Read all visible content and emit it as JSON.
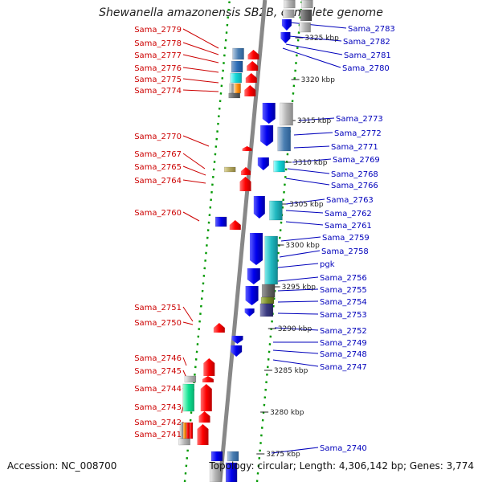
{
  "title": "Shewanella amazonensis SB2B, complete genome",
  "footer": {
    "accession": "Accession: NC_008700",
    "topology": "Topology: circular; Length: 4,306,142 bp; Genes: 3,774"
  },
  "colors": {
    "left_label": "#cc0000",
    "right_label": "#0000bb",
    "forward_gene": "#ff0000",
    "reverse_gene": "#0000ee",
    "tick": "#009900",
    "backbone": "#888888"
  },
  "scale_labels": [
    "3325 kbp",
    "3320 kbp",
    "3315 kbp",
    "3310 kbp",
    "3305 kbp",
    "3300 kbp",
    "3295 kbp",
    "3290 kbp",
    "3285 kbp",
    "3280 kbp",
    "3275 kbp"
  ],
  "left_genes": [
    "Sama_2779",
    "Sama_2778",
    "Sama_2777",
    "Sama_2776",
    "Sama_2775",
    "Sama_2774",
    "Sama_2770",
    "Sama_2767",
    "Sama_2765",
    "Sama_2764",
    "Sama_2760",
    "Sama_2751",
    "Sama_2750",
    "Sama_2746",
    "Sama_2745",
    "Sama_2744",
    "Sama_2743",
    "Sama_2742",
    "Sama_2741"
  ],
  "right_genes": [
    "Sama_2783",
    "Sama_2782",
    "Sama_2781",
    "Sama_2780",
    "Sama_2773",
    "Sama_2772",
    "Sama_2771",
    "Sama_2769",
    "Sama_2768",
    "Sama_2766",
    "Sama_2763",
    "Sama_2762",
    "Sama_2761",
    "Sama_2759",
    "Sama_2758",
    "pgk",
    "Sama_2756",
    "Sama_2755",
    "Sama_2754",
    "Sama_2753",
    "Sama_2752",
    "Sama_2749",
    "Sama_2748",
    "Sama_2747",
    "Sama_2740"
  ]
}
